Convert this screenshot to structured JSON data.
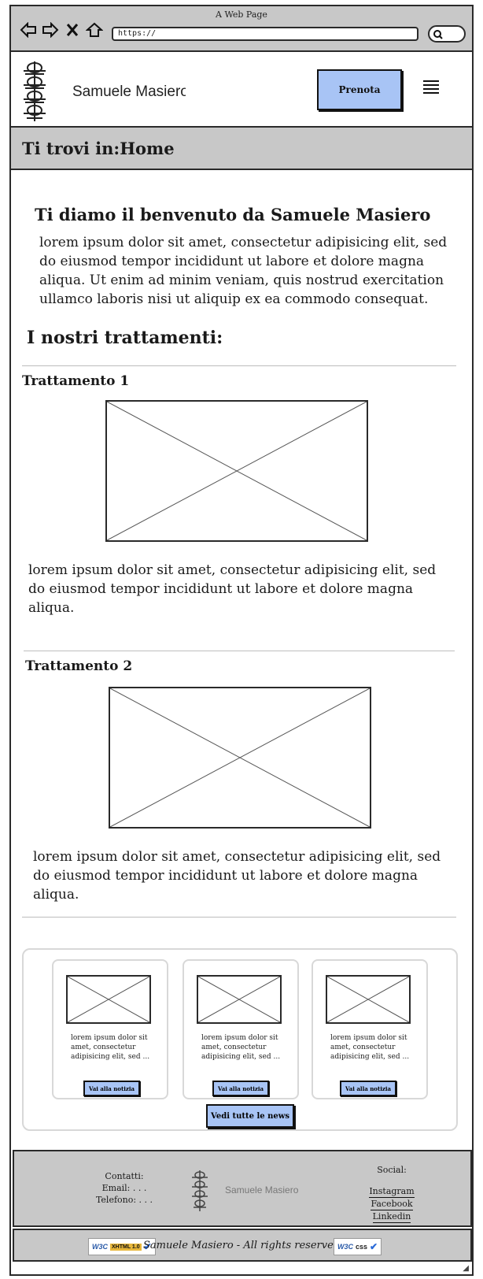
{
  "browser": {
    "title": "A Web Page",
    "url": "https://"
  },
  "header": {
    "site_name": "Samuele Masiero",
    "book_button": "Prenota"
  },
  "breadcrumb": {
    "label": "Ti trovi in:",
    "current": "Home"
  },
  "welcome": {
    "title": "Ti diamo il benvenuto da Samuele Masiero",
    "text": "lorem ipsum dolor sit amet, consectetur adipisicing elit, sed do eiusmod tempor incididunt ut labore et dolore magna aliqua. Ut enim ad minim veniam, quis nostrud exercitation ullamco laboris nisi ut aliquip ex ea commodo consequat."
  },
  "treatments": {
    "section_title": "I nostri trattamenti:",
    "items": [
      {
        "title": "Trattamento 1",
        "text": "lorem ipsum dolor sit amet, consectetur adipisicing elit, sed do eiusmod tempor incididunt ut labore et dolore magna aliqua."
      },
      {
        "title": "Trattamento 2",
        "text": "lorem ipsum dolor sit amet, consectetur adipisicing elit, sed do eiusmod tempor incididunt ut labore et dolore magna aliqua."
      }
    ]
  },
  "news": {
    "items": [
      {
        "text": "lorem ipsum dolor sit amet, consectetur adipisicing elit, sed ...",
        "button": "Vai alla notizia"
      },
      {
        "text": "lorem ipsum dolor sit amet, consectetur adipisicing elit, sed ...",
        "button": "Vai alla notizia"
      },
      {
        "text": "lorem ipsum dolor sit amet, consectetur adipisicing elit, sed ...",
        "button": "Vai alla notizia"
      }
    ],
    "all_button": "Vedi tutte le news"
  },
  "footer": {
    "contacts_title": "Contatti:",
    "email": "Email: . . .",
    "phone": "Telefono: . . .",
    "site_name": "Samuele Masiero",
    "social_title": "Social:",
    "social_links": [
      "Instagram",
      "Facebook",
      "Linkedin"
    ],
    "copyright": "Samuele Masiero - All rights reserved",
    "xhtml_badge": {
      "w3c": "W3C",
      "tag": "XHTML 1.0"
    },
    "css_badge": {
      "w3c": "W3C",
      "tag": "css"
    }
  },
  "colors": {
    "accent_button": "#a8c4f5",
    "chrome_gray": "#c8c8c8"
  },
  "icons": [
    "back-arrow-icon",
    "forward-arrow-icon",
    "close-icon",
    "home-icon",
    "search-icon",
    "hamburger-menu-icon",
    "spine-logo-icon",
    "checkmark-icon",
    "resize-grip-icon"
  ]
}
